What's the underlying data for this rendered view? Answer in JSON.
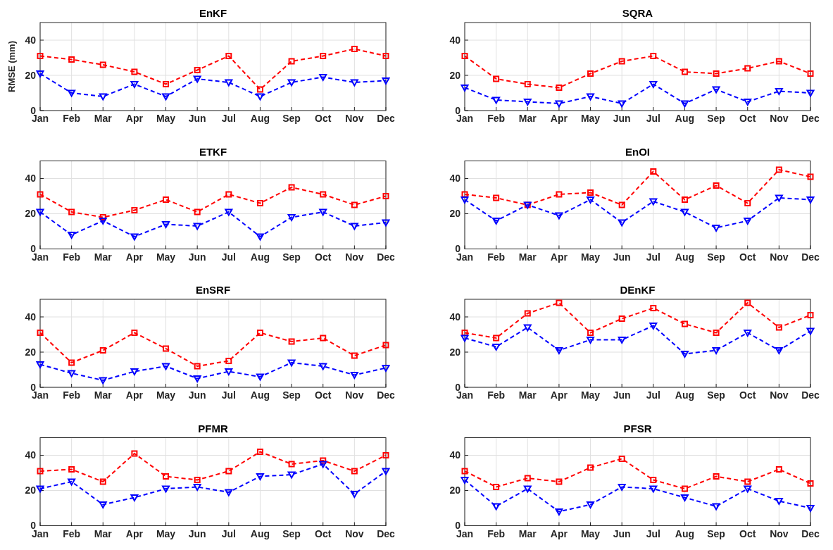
{
  "chart_data": [
    {
      "type": "line",
      "title": "EnKF",
      "ylabel": "RMSE (mm)",
      "categories": [
        "Jan",
        "Feb",
        "Mar",
        "Apr",
        "May",
        "Jun",
        "Jul",
        "Aug",
        "Sep",
        "Oct",
        "Nov",
        "Dec"
      ],
      "ylim": [
        0,
        50
      ],
      "yticks": [
        0,
        20,
        40
      ],
      "grid": true,
      "series": [
        {
          "color": "#ff0000",
          "marker": "square",
          "line_style": "dashed",
          "values": [
            31,
            29,
            26,
            22,
            15,
            23,
            31,
            12,
            28,
            31,
            35,
            31
          ]
        },
        {
          "color": "#0000ff",
          "marker": "triangle",
          "line_style": "dashed",
          "values": [
            21,
            10,
            8,
            15,
            8,
            18,
            16,
            8,
            16,
            19,
            16,
            17
          ]
        }
      ]
    },
    {
      "type": "line",
      "title": "SQRA",
      "categories": [
        "Jan",
        "Feb",
        "Mar",
        "Apr",
        "May",
        "Jun",
        "Jul",
        "Aug",
        "Sep",
        "Oct",
        "Nov",
        "Dec"
      ],
      "ylim": [
        0,
        50
      ],
      "yticks": [
        0,
        20,
        40
      ],
      "grid": true,
      "series": [
        {
          "color": "#ff0000",
          "marker": "square",
          "line_style": "dashed",
          "values": [
            31,
            18,
            15,
            13,
            21,
            28,
            31,
            22,
            21,
            24,
            28,
            21
          ]
        },
        {
          "color": "#0000ff",
          "marker": "triangle",
          "line_style": "dashed",
          "values": [
            13,
            6,
            5,
            4,
            8,
            4,
            15,
            4,
            12,
            5,
            11,
            10
          ]
        }
      ]
    },
    {
      "type": "line",
      "title": "ETKF",
      "categories": [
        "Jan",
        "Feb",
        "Mar",
        "Apr",
        "May",
        "Jun",
        "Jul",
        "Aug",
        "Sep",
        "Oct",
        "Nov",
        "Dec"
      ],
      "ylim": [
        0,
        50
      ],
      "yticks": [
        0,
        20,
        40
      ],
      "grid": true,
      "series": [
        {
          "color": "#ff0000",
          "marker": "square",
          "line_style": "dashed",
          "values": [
            31,
            21,
            18,
            22,
            28,
            21,
            31,
            26,
            35,
            31,
            25,
            30
          ]
        },
        {
          "color": "#0000ff",
          "marker": "triangle",
          "line_style": "dashed",
          "values": [
            21,
            8,
            16,
            7,
            14,
            13,
            21,
            7,
            18,
            21,
            13,
            15
          ]
        }
      ]
    },
    {
      "type": "line",
      "title": "EnOI",
      "categories": [
        "Jan",
        "Feb",
        "Mar",
        "Apr",
        "May",
        "Jun",
        "Jul",
        "Aug",
        "Sep",
        "Oct",
        "Nov",
        "Dec"
      ],
      "ylim": [
        0,
        50
      ],
      "yticks": [
        0,
        20,
        40
      ],
      "grid": true,
      "series": [
        {
          "color": "#ff0000",
          "marker": "square",
          "line_style": "dashed",
          "values": [
            31,
            29,
            25,
            31,
            32,
            25,
            44,
            28,
            36,
            26,
            45,
            41
          ]
        },
        {
          "color": "#0000ff",
          "marker": "triangle",
          "line_style": "dashed",
          "values": [
            28,
            16,
            25,
            19,
            28,
            15,
            27,
            21,
            12,
            16,
            29,
            28
          ]
        }
      ]
    },
    {
      "type": "line",
      "title": "EnSRF",
      "categories": [
        "Jan",
        "Feb",
        "Mar",
        "Apr",
        "May",
        "Jun",
        "Jul",
        "Aug",
        "Sep",
        "Oct",
        "Nov",
        "Dec"
      ],
      "ylim": [
        0,
        50
      ],
      "yticks": [
        0,
        20,
        40
      ],
      "grid": true,
      "series": [
        {
          "color": "#ff0000",
          "marker": "square",
          "line_style": "dashed",
          "values": [
            31,
            14,
            21,
            31,
            22,
            12,
            15,
            31,
            26,
            28,
            18,
            24
          ]
        },
        {
          "color": "#0000ff",
          "marker": "triangle",
          "line_style": "dashed",
          "values": [
            13,
            8,
            4,
            9,
            12,
            5,
            9,
            6,
            14,
            12,
            7,
            11
          ]
        }
      ]
    },
    {
      "type": "line",
      "title": "DEnKF",
      "categories": [
        "Jan",
        "Feb",
        "Mar",
        "Apr",
        "May",
        "Jun",
        "Jul",
        "Aug",
        "Sep",
        "Oct",
        "Nov",
        "Dec"
      ],
      "ylim": [
        0,
        50
      ],
      "yticks": [
        0,
        20,
        40
      ],
      "grid": true,
      "series": [
        {
          "color": "#ff0000",
          "marker": "square",
          "line_style": "dashed",
          "values": [
            31,
            28,
            42,
            48,
            31,
            39,
            45,
            36,
            31,
            48,
            34,
            41
          ]
        },
        {
          "color": "#0000ff",
          "marker": "triangle",
          "line_style": "dashed",
          "values": [
            28,
            23,
            34,
            21,
            27,
            27,
            35,
            19,
            21,
            31,
            21,
            32
          ]
        }
      ]
    },
    {
      "type": "line",
      "title": "PFMR",
      "categories": [
        "Jan",
        "Feb",
        "Mar",
        "Apr",
        "May",
        "Jun",
        "Jul",
        "Aug",
        "Sep",
        "Oct",
        "Nov",
        "Dec"
      ],
      "ylim": [
        0,
        50
      ],
      "yticks": [
        0,
        20,
        40
      ],
      "grid": true,
      "series": [
        {
          "color": "#ff0000",
          "marker": "square",
          "line_style": "dashed",
          "values": [
            31,
            32,
            25,
            41,
            28,
            26,
            31,
            42,
            35,
            37,
            31,
            40
          ]
        },
        {
          "color": "#0000ff",
          "marker": "triangle",
          "line_style": "dashed",
          "values": [
            21,
            25,
            12,
            16,
            21,
            22,
            19,
            28,
            29,
            35,
            18,
            31
          ]
        }
      ]
    },
    {
      "type": "line",
      "title": "PFSR",
      "categories": [
        "Jan",
        "Feb",
        "Mar",
        "Apr",
        "May",
        "Jun",
        "Jul",
        "Aug",
        "Sep",
        "Oct",
        "Nov",
        "Dec"
      ],
      "ylim": [
        0,
        50
      ],
      "yticks": [
        0,
        20,
        40
      ],
      "grid": true,
      "series": [
        {
          "color": "#ff0000",
          "marker": "square",
          "line_style": "dashed",
          "values": [
            31,
            22,
            27,
            25,
            33,
            38,
            26,
            21,
            28,
            25,
            32,
            24
          ]
        },
        {
          "color": "#0000ff",
          "marker": "triangle",
          "line_style": "dashed",
          "values": [
            26,
            11,
            21,
            8,
            12,
            22,
            21,
            16,
            11,
            21,
            14,
            10
          ]
        }
      ]
    }
  ]
}
